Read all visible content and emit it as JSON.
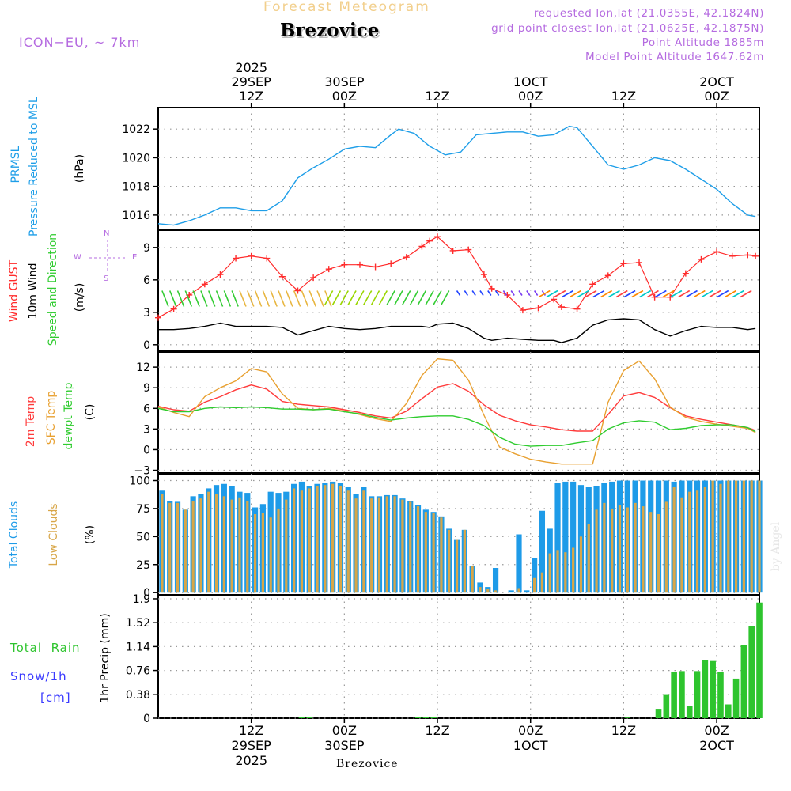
{
  "header": {
    "product_title": "Forecast Meteogram",
    "location": "Brezovice",
    "model": "ICON−EU, ~ 7km",
    "requested": "requested lon,lat (21.0355E, 42.1824N)",
    "grid_point": "grid point closest lon,lat (21.0625E, 42.1875N)",
    "point_altitude": "Point Altitude 1885m",
    "model_altitude": "Model Point Altitude 1647.62m",
    "credit": "by Angel",
    "footer_location": "Brezovice"
  },
  "time_axis": {
    "top_year": "2025",
    "bottom_year": "2025",
    "ticks": [
      {
        "hour": 12,
        "label": "12Z",
        "date": "29SEP"
      },
      {
        "hour": 24,
        "label": "00Z",
        "date": "30SEP"
      },
      {
        "hour": 36,
        "label": "12Z",
        "date": ""
      },
      {
        "hour": 48,
        "label": "00Z",
        "date": "1OCT"
      },
      {
        "hour": 60,
        "label": "12Z",
        "date": ""
      },
      {
        "hour": 72,
        "label": "00Z",
        "date": "2OCT"
      }
    ]
  },
  "compass": {
    "n": "N",
    "s": "S",
    "e": "E",
    "w": "W"
  },
  "panel_labels": {
    "pressure": {
      "name": "PRMSL",
      "desc": "Pressure Reduced to MSL",
      "unit": "(hPa)"
    },
    "wind": {
      "gust": "Wind GUST",
      "wind10": "10m Wind",
      "dir": "Speed and Direction",
      "unit": "(m/s)"
    },
    "temp": {
      "t2m": "2m Temp",
      "sfc": "SFC Temp",
      "dew": "dewpt Temp",
      "unit": "(C)"
    },
    "clouds": {
      "total": "Total Clouds",
      "low": "Low Clouds",
      "unit": "(%)"
    },
    "precip": {
      "rain": "Total  Rain",
      "snow": "Snow/1h",
      "snow_unit": "[cm]",
      "unit": "1hr Precip (mm)"
    }
  },
  "chart_data": [
    {
      "type": "line",
      "title": "PRMSL Pressure Reduced to MSL",
      "ylabel": "hPa",
      "x_hours": [
        0,
        2,
        4,
        6,
        8,
        10,
        12,
        14,
        16,
        18,
        20,
        22,
        24,
        26,
        28,
        30,
        31,
        33,
        35,
        37,
        39,
        41,
        43,
        45,
        47,
        49,
        51,
        53,
        54,
        56,
        58,
        60,
        62,
        64,
        66,
        68,
        70,
        72,
        74,
        76,
        77
      ],
      "ylim": [
        1015,
        1023.5
      ],
      "yticks": [
        1016,
        1018,
        1020,
        1022
      ],
      "series": [
        {
          "name": "PRMSL",
          "color": "#1e9ee8",
          "values": [
            1015.4,
            1015.3,
            1015.6,
            1016.0,
            1016.5,
            1016.5,
            1016.3,
            1016.3,
            1017.0,
            1018.6,
            1019.3,
            1019.9,
            1020.6,
            1020.8,
            1020.7,
            1021.6,
            1022.0,
            1021.7,
            1020.8,
            1020.2,
            1020.4,
            1021.6,
            1021.7,
            1021.8,
            1021.8,
            1021.5,
            1021.6,
            1022.2,
            1022.1,
            1020.8,
            1019.5,
            1019.2,
            1019.5,
            1020.0,
            1019.8,
            1019.2,
            1018.5,
            1017.8,
            1016.8,
            1016.0,
            1015.9
          ]
        }
      ]
    },
    {
      "type": "line",
      "title": "Wind GUST / 10m Wind Speed and Direction",
      "ylabel": "m/s",
      "x_hours": [
        0,
        2,
        4,
        6,
        8,
        10,
        12,
        14,
        16,
        18,
        20,
        22,
        24,
        26,
        28,
        30,
        32,
        34,
        35,
        36,
        38,
        40,
        42,
        43,
        45,
        47,
        49,
        51,
        52,
        54,
        56,
        58,
        60,
        62,
        64,
        66,
        68,
        70,
        72,
        74,
        76,
        77
      ],
      "ylim": [
        -0.6,
        10.6
      ],
      "yticks": [
        0,
        3,
        6,
        9
      ],
      "series": [
        {
          "name": "Wind GUST",
          "color": "#ff2b2b",
          "marker": "+",
          "values": [
            2.5,
            3.3,
            4.6,
            5.6,
            6.5,
            8.0,
            8.2,
            8.0,
            6.3,
            5.0,
            6.2,
            7.0,
            7.4,
            7.4,
            7.2,
            7.5,
            8.1,
            9.1,
            9.6,
            10.0,
            8.7,
            8.8,
            6.5,
            5.2,
            4.6,
            3.2,
            3.4,
            4.2,
            3.5,
            3.3,
            5.6,
            6.4,
            7.5,
            7.6,
            4.4,
            4.4,
            6.6,
            7.9,
            8.6,
            8.2,
            8.3,
            8.2
          ]
        },
        {
          "name": "10m Wind",
          "color": "#000000",
          "values": [
            1.4,
            1.4,
            1.5,
            1.7,
            2.0,
            1.7,
            1.7,
            1.7,
            1.6,
            0.9,
            1.3,
            1.7,
            1.5,
            1.4,
            1.5,
            1.7,
            1.7,
            1.7,
            1.6,
            1.9,
            2.0,
            1.5,
            0.6,
            0.4,
            0.6,
            0.5,
            0.4,
            0.4,
            0.2,
            0.6,
            1.8,
            2.3,
            2.4,
            2.3,
            1.4,
            0.8,
            1.3,
            1.7,
            1.6,
            1.6,
            1.4,
            1.5
          ]
        }
      ],
      "wind_arrow_colors": [
        "#33cc33",
        "#e8b640",
        "#9ad600",
        "#ff4040",
        "#2244ff",
        "#ff8800",
        "#00c8c8",
        "#7b3ff2"
      ]
    },
    {
      "type": "line",
      "title": "2m Temp / SFC Temp / dewpt Temp",
      "ylabel": "C",
      "x_hours": [
        0,
        2,
        4,
        6,
        8,
        10,
        12,
        14,
        16,
        18,
        20,
        22,
        24,
        26,
        28,
        30,
        32,
        34,
        36,
        38,
        40,
        42,
        44,
        46,
        48,
        50,
        52,
        54,
        56,
        58,
        60,
        62,
        64,
        66,
        68,
        70,
        72,
        74,
        76,
        77
      ],
      "ylim": [
        -3,
        14
      ],
      "yticks": [
        -3,
        0,
        3,
        6,
        9,
        12
      ],
      "series": [
        {
          "name": "2m Temp",
          "color": "#ff3b3b",
          "values": [
            6.3,
            5.8,
            5.6,
            6.9,
            7.7,
            8.7,
            9.4,
            8.8,
            7.0,
            6.6,
            6.4,
            6.2,
            5.8,
            5.4,
            4.9,
            4.6,
            5.6,
            7.4,
            9.1,
            9.6,
            8.5,
            6.5,
            5.0,
            4.2,
            3.6,
            3.3,
            2.9,
            2.7,
            2.7,
            5.1,
            7.8,
            8.3,
            7.6,
            6.1,
            4.9,
            4.4,
            4.0,
            3.6,
            3.2,
            2.8
          ]
        },
        {
          "name": "SFC Temp",
          "color": "#e8a030",
          "values": [
            6.2,
            5.4,
            4.8,
            7.7,
            9.0,
            10.0,
            11.8,
            11.3,
            8.1,
            6.0,
            5.8,
            6.0,
            5.6,
            5.1,
            4.5,
            4.1,
            6.7,
            10.8,
            13.2,
            13.0,
            10.1,
            5.0,
            0.4,
            -0.6,
            -1.4,
            -1.8,
            -2.1,
            -2.1,
            -2.1,
            6.9,
            11.5,
            12.9,
            10.3,
            6.2,
            4.7,
            4.1,
            3.7,
            3.4,
            3.1,
            2.5
          ]
        },
        {
          "name": "dewpt Temp",
          "color": "#2fcc2f",
          "values": [
            6.0,
            5.5,
            5.5,
            6.0,
            6.2,
            6.1,
            6.2,
            6.1,
            5.9,
            5.9,
            5.8,
            5.9,
            5.5,
            5.2,
            4.7,
            4.3,
            4.6,
            4.8,
            4.9,
            4.9,
            4.4,
            3.5,
            1.8,
            0.8,
            0.5,
            0.6,
            0.6,
            1.0,
            1.3,
            3.0,
            3.9,
            4.2,
            4.0,
            2.9,
            3.1,
            3.5,
            3.6,
            3.6,
            3.2,
            2.6
          ]
        }
      ]
    },
    {
      "type": "bar",
      "title": "Total Clouds / Low Clouds",
      "ylabel": "%",
      "x_hours": [
        0,
        1,
        2,
        3,
        4,
        5,
        6,
        7,
        8,
        9,
        10,
        11,
        12,
        13,
        14,
        15,
        16,
        17,
        18,
        19,
        20,
        21,
        22,
        23,
        24,
        25,
        26,
        27,
        28,
        29,
        30,
        31,
        32,
        33,
        34,
        35,
        36,
        37,
        38,
        39,
        40,
        41,
        42,
        43,
        44,
        45,
        46,
        47,
        48,
        49,
        50,
        51,
        52,
        53,
        54,
        55,
        56,
        57,
        58,
        59,
        60,
        61,
        62,
        63,
        64,
        65,
        66,
        67,
        68,
        69,
        70,
        71,
        72,
        73,
        74,
        75,
        76,
        77
      ],
      "ylim": [
        0,
        100
      ],
      "yticks": [
        0,
        25,
        50,
        75,
        100
      ],
      "series": [
        {
          "name": "Total Clouds",
          "color": "#1e9be8",
          "values": [
            91,
            82,
            81,
            74,
            86,
            88,
            93,
            96,
            97,
            95,
            90,
            89,
            76,
            79,
            90,
            89,
            90,
            97,
            99,
            95,
            97,
            98,
            99,
            98,
            94,
            88,
            94,
            86,
            86,
            87,
            87,
            84,
            82,
            78,
            74,
            72,
            68,
            57,
            47,
            56,
            24,
            9,
            5,
            22,
            0,
            2,
            52,
            2,
            31,
            73,
            57,
            98,
            99,
            99,
            96,
            94,
            95,
            98,
            99,
            100,
            100,
            100,
            100,
            100,
            100,
            100,
            99,
            100,
            100,
            100,
            100,
            100,
            100,
            100,
            100,
            100,
            100,
            100
          ]
        },
        {
          "name": "Low Clouds",
          "color": "#d8a648",
          "values": [
            88,
            80,
            80,
            74,
            82,
            84,
            90,
            88,
            86,
            83,
            85,
            82,
            70,
            71,
            67,
            75,
            83,
            93,
            91,
            93,
            95,
            96,
            97,
            95,
            91,
            84,
            91,
            84,
            85,
            86,
            86,
            83,
            81,
            77,
            72,
            71,
            67,
            56,
            47,
            56,
            24,
            5,
            3,
            2,
            0,
            0,
            4,
            0,
            13,
            18,
            35,
            38,
            36,
            40,
            50,
            61,
            74,
            80,
            75,
            78,
            76,
            80,
            77,
            72,
            70,
            81,
            94,
            85,
            90,
            91,
            94,
            100,
            97,
            100,
            100,
            100,
            100,
            100
          ]
        }
      ]
    },
    {
      "type": "bar",
      "title": "Total Rain / Snow 1h",
      "ylabel": "1hr Precip (mm)",
      "x_hours": [
        0,
        1,
        2,
        3,
        4,
        5,
        6,
        7,
        8,
        9,
        10,
        11,
        12,
        13,
        14,
        15,
        16,
        17,
        18,
        19,
        20,
        21,
        22,
        23,
        24,
        25,
        26,
        27,
        28,
        29,
        30,
        31,
        32,
        33,
        34,
        35,
        36,
        37,
        38,
        39,
        40,
        41,
        42,
        43,
        44,
        45,
        46,
        47,
        48,
        49,
        50,
        51,
        52,
        53,
        54,
        55,
        56,
        57,
        58,
        59,
        60,
        61,
        62,
        63,
        64,
        65,
        66,
        67,
        68,
        69,
        70,
        71,
        72,
        73,
        74,
        75,
        76,
        77
      ],
      "ylim": [
        0,
        1.9
      ],
      "yticks": [
        0,
        0.38,
        0.76,
        1.14,
        1.52,
        1.9
      ],
      "series": [
        {
          "name": "Total Rain",
          "color": "#2ec42e",
          "values": [
            0,
            0,
            0,
            0,
            0,
            0,
            0,
            0,
            0,
            0,
            0,
            0,
            0,
            0,
            0,
            0,
            0,
            0,
            0.02,
            0.02,
            0,
            0,
            0,
            0,
            0,
            0,
            0,
            0,
            0,
            0,
            0,
            0,
            0,
            0.02,
            0.02,
            0.02,
            0,
            0,
            0,
            0,
            0,
            0,
            0,
            0,
            0,
            0,
            0,
            0,
            0,
            0,
            0,
            0,
            0,
            0,
            0,
            0,
            0,
            0,
            0,
            0,
            0.01,
            0,
            0,
            0,
            0.15,
            0.37,
            0.73,
            0.75,
            0.2,
            0.75,
            0.93,
            0.91,
            0.73,
            0.22,
            0.63,
            1.16,
            1.47,
            1.84
          ]
        },
        {
          "name": "Snow/1h",
          "color": "#3a3aff",
          "values": []
        }
      ]
    }
  ]
}
